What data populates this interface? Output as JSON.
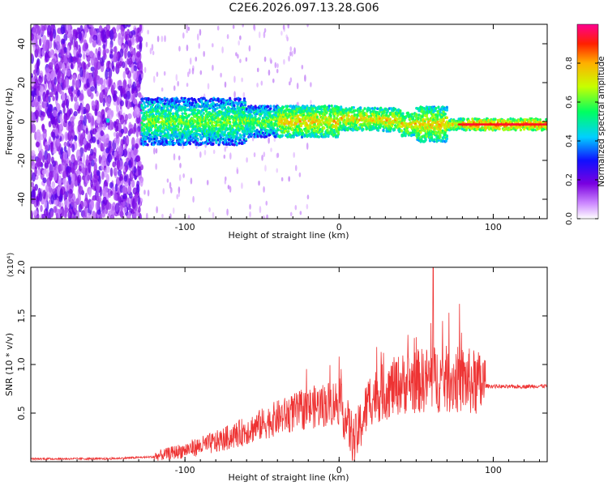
{
  "title": "C2E6.2026.097.13.28.G06",
  "colors": {
    "snr_line": "#ee3333",
    "axis": "#000000"
  },
  "chart_data": [
    {
      "type": "heatmap",
      "name": "spectrogram",
      "xlabel": "Height of straight line (km)",
      "ylabel": "Frequency (Hz)",
      "xlim": [
        -200,
        135
      ],
      "ylim": [
        -50,
        50
      ],
      "x_ticks": [
        -100,
        0,
        100
      ],
      "x_tick_labels": [
        "-100",
        "0",
        "100"
      ],
      "y_ticks": [
        40,
        20,
        0,
        -20,
        -40
      ],
      "y_tick_labels": [
        "40",
        "20",
        "0",
        "-20",
        "-40"
      ],
      "colorbar": {
        "label": "Normalized spectral amplitude",
        "range": [
          0,
          1
        ],
        "ticks": [
          0.0,
          0.2,
          0.4,
          0.6,
          0.8
        ],
        "tick_labels": [
          "0.0",
          "0.2",
          "0.4",
          "0.6",
          "0.8"
        ],
        "colormap": "rainbow"
      }
    },
    {
      "type": "line",
      "name": "snr",
      "xlabel": "Height of straight line (km)",
      "ylabel": "SNR (10 * v/v)",
      "y_multiplier": "(x10⁴)",
      "xlim": [
        -200,
        135
      ],
      "ylim": [
        0,
        2.0
      ],
      "x_ticks": [
        -100,
        0,
        100
      ],
      "x_tick_labels": [
        "-100",
        "0",
        "100"
      ],
      "y_ticks": [
        0.5,
        1.0,
        1.5,
        2.0
      ],
      "y_tick_labels": [
        "0.5",
        "1.0",
        "1.5",
        "2.0"
      ],
      "series": [
        {
          "name": "SNR",
          "x": [
            -200,
            -150,
            -120,
            -100,
            -80,
            -60,
            -40,
            -20,
            0,
            10,
            20,
            40,
            60,
            80,
            95,
            110,
            135
          ],
          "values": [
            0.03,
            0.03,
            0.05,
            0.12,
            0.2,
            0.32,
            0.45,
            0.55,
            0.62,
            0.2,
            0.65,
            0.8,
            0.85,
            0.84,
            0.78,
            0.77,
            0.78
          ]
        }
      ]
    }
  ]
}
